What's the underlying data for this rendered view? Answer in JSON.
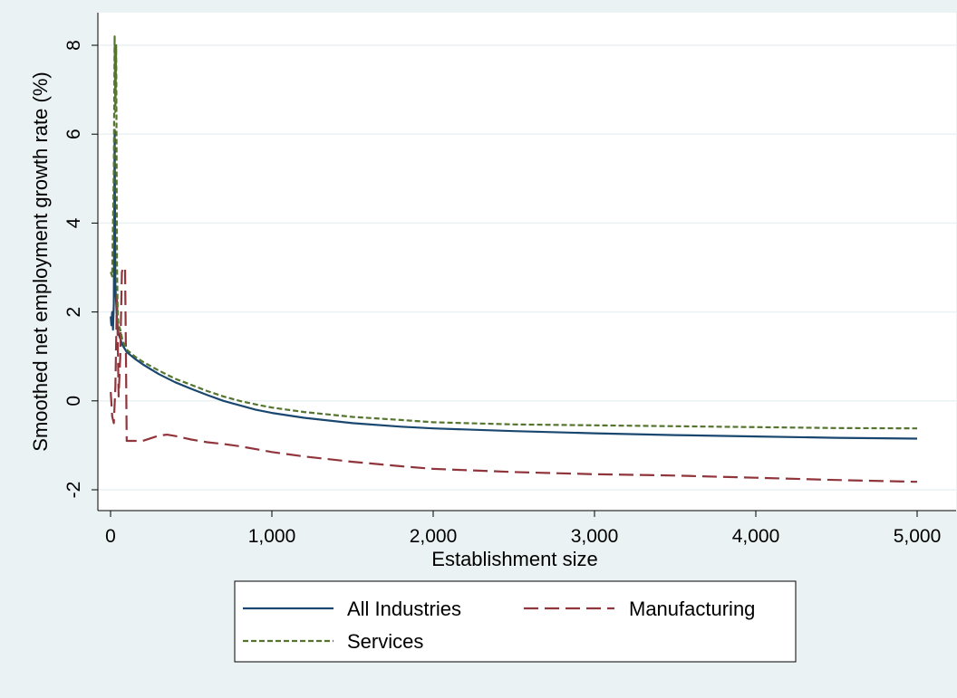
{
  "colors": {
    "background": "#eaf2f3",
    "plot_background": "#ffffff",
    "gridline": "#eaf2f3",
    "axis": "#000000"
  },
  "chart_data": {
    "type": "line",
    "title": "",
    "xlabel": "Establishment size",
    "ylabel": "Smoothed net employment growth rate (%)",
    "xlim": [
      0,
      5000
    ],
    "ylim": [
      -2,
      8
    ],
    "x_ticks": [
      0,
      1000,
      2000,
      3000,
      4000,
      5000
    ],
    "x_tick_labels": [
      "0",
      "1,000",
      "2,000",
      "3,000",
      "4,000",
      "5,000"
    ],
    "y_ticks": [
      -2,
      0,
      2,
      4,
      6,
      8
    ],
    "y_tick_labels": [
      "-2",
      "0",
      "2",
      "4",
      "6",
      "8"
    ],
    "grid": true,
    "legend_placement": "bottom",
    "series": [
      {
        "name": "All Industries",
        "color": "#1a476f",
        "dash": "solid",
        "points": [
          [
            1,
            1.9
          ],
          [
            5,
            1.7
          ],
          [
            10,
            2.0
          ],
          [
            15,
            1.6
          ],
          [
            20,
            2.2
          ],
          [
            25,
            6.1
          ],
          [
            30,
            2.6
          ],
          [
            40,
            1.8
          ],
          [
            50,
            1.5
          ],
          [
            75,
            1.25
          ],
          [
            100,
            1.1
          ],
          [
            150,
            0.95
          ],
          [
            200,
            0.82
          ],
          [
            300,
            0.6
          ],
          [
            400,
            0.42
          ],
          [
            500,
            0.27
          ],
          [
            600,
            0.13
          ],
          [
            700,
            0.0
          ],
          [
            800,
            -0.1
          ],
          [
            900,
            -0.2
          ],
          [
            1000,
            -0.27
          ],
          [
            1200,
            -0.38
          ],
          [
            1500,
            -0.5
          ],
          [
            1800,
            -0.58
          ],
          [
            2000,
            -0.62
          ],
          [
            2500,
            -0.68
          ],
          [
            3000,
            -0.73
          ],
          [
            3500,
            -0.77
          ],
          [
            4000,
            -0.8
          ],
          [
            4500,
            -0.83
          ],
          [
            5000,
            -0.85
          ]
        ]
      },
      {
        "name": "Manufacturing",
        "color": "#90353b",
        "dash": "long-dash",
        "points": [
          [
            1,
            0.2
          ],
          [
            10,
            -0.35
          ],
          [
            20,
            -0.5
          ],
          [
            30,
            0.3
          ],
          [
            40,
            2.4
          ],
          [
            50,
            0.1
          ],
          [
            60,
            1.0
          ],
          [
            70,
            2.9
          ],
          [
            80,
            3.0
          ],
          [
            90,
            3.0
          ],
          [
            95,
            1.2
          ],
          [
            100,
            -0.9
          ],
          [
            150,
            -0.9
          ],
          [
            200,
            -0.9
          ],
          [
            300,
            -0.78
          ],
          [
            350,
            -0.76
          ],
          [
            400,
            -0.79
          ],
          [
            500,
            -0.87
          ],
          [
            600,
            -0.93
          ],
          [
            700,
            -0.97
          ],
          [
            800,
            -1.02
          ],
          [
            1000,
            -1.15
          ],
          [
            1200,
            -1.25
          ],
          [
            1500,
            -1.37
          ],
          [
            1800,
            -1.47
          ],
          [
            2000,
            -1.53
          ],
          [
            2500,
            -1.6
          ],
          [
            3000,
            -1.65
          ],
          [
            3500,
            -1.68
          ],
          [
            4000,
            -1.73
          ],
          [
            4500,
            -1.78
          ],
          [
            5000,
            -1.82
          ]
        ]
      },
      {
        "name": "Services",
        "color": "#55752f",
        "dash": "short-dash",
        "points": [
          [
            1,
            2.9
          ],
          [
            10,
            2.8
          ],
          [
            20,
            5.2
          ],
          [
            25,
            8.2
          ],
          [
            30,
            6.5
          ],
          [
            35,
            8.0
          ],
          [
            40,
            3.0
          ],
          [
            45,
            1.9
          ],
          [
            50,
            1.7
          ],
          [
            60,
            1.6
          ],
          [
            75,
            1.35
          ],
          [
            100,
            1.15
          ],
          [
            150,
            1.0
          ],
          [
            200,
            0.88
          ],
          [
            300,
            0.68
          ],
          [
            400,
            0.5
          ],
          [
            500,
            0.36
          ],
          [
            600,
            0.22
          ],
          [
            700,
            0.1
          ],
          [
            800,
            0.0
          ],
          [
            900,
            -0.08
          ],
          [
            1000,
            -0.15
          ],
          [
            1200,
            -0.25
          ],
          [
            1500,
            -0.36
          ],
          [
            1800,
            -0.43
          ],
          [
            2000,
            -0.48
          ],
          [
            2500,
            -0.53
          ],
          [
            3000,
            -0.55
          ],
          [
            3500,
            -0.57
          ],
          [
            4000,
            -0.59
          ],
          [
            4500,
            -0.61
          ],
          [
            5000,
            -0.62
          ]
        ]
      }
    ]
  }
}
